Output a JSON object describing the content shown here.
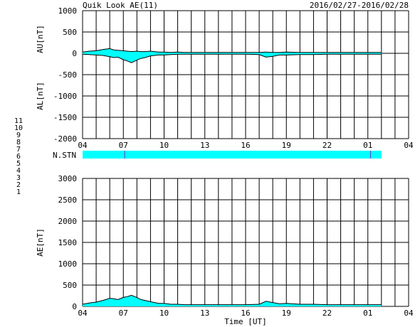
{
  "header": {
    "title": "Quik Look AE(11)",
    "date_range": "2016/02/27-2016/02/28"
  },
  "station_legend": {
    "items": [
      {
        "label": "11",
        "color": "#33cccc"
      },
      {
        "label": "10",
        "color": "#ff00ff"
      },
      {
        "label": "9",
        "color": "#0000cc"
      },
      {
        "label": "8",
        "color": "#ffff00"
      },
      {
        "label": "7",
        "color": "#00cc00"
      },
      {
        "label": "6",
        "color": "#ff0000"
      },
      {
        "label": "5",
        "color": "#999999"
      },
      {
        "label": "4",
        "color": "#000000"
      },
      {
        "label": "3",
        "color": "#00aaaa"
      },
      {
        "label": "2",
        "color": "#aa00aa"
      },
      {
        "label": "1",
        "color": "#0000ff"
      }
    ]
  },
  "chart_data": [
    {
      "type": "area",
      "name": "AU/AL panel",
      "ylabel_top": "AU[nT]",
      "ylabel_bottom": "AL[nT]",
      "ylim": [
        -2000,
        1000
      ],
      "yticks": [
        "1000",
        "500",
        "0",
        "-500",
        "-1000",
        "-1500",
        "-2000"
      ],
      "xticks": [
        "04",
        "07",
        "10",
        "13",
        "16",
        "19",
        "22",
        "01",
        "04"
      ],
      "xlim_hours": [
        0,
        24
      ],
      "fill_color": "#00ffff",
      "x": [
        0,
        0.5,
        1,
        1.5,
        2,
        2.3,
        2.6,
        3,
        3.3,
        3.6,
        4,
        4.3,
        4.6,
        5,
        5.3,
        5.6,
        6,
        6.5,
        7,
        7.5,
        8,
        9,
        10,
        11,
        12,
        13,
        13.5,
        14,
        14.5,
        15,
        16,
        17,
        18,
        19,
        20,
        21,
        22
      ],
      "au": [
        30,
        50,
        60,
        90,
        110,
        80,
        70,
        60,
        50,
        40,
        50,
        40,
        40,
        50,
        40,
        30,
        30,
        20,
        30,
        20,
        20,
        20,
        20,
        20,
        20,
        20,
        30,
        20,
        20,
        30,
        20,
        20,
        20,
        20,
        20,
        20,
        20
      ],
      "al": [
        -20,
        -30,
        -40,
        -50,
        -80,
        -100,
        -90,
        -150,
        -180,
        -220,
        -160,
        -120,
        -100,
        -60,
        -50,
        -40,
        -40,
        -30,
        -20,
        -20,
        -20,
        -20,
        -20,
        -20,
        -20,
        -30,
        -90,
        -70,
        -40,
        -40,
        -30,
        -30,
        -20,
        -20,
        -20,
        -20,
        -20
      ]
    },
    {
      "type": "bar",
      "name": "N.STN",
      "label": "N.STN",
      "fill_color": "#00ffff",
      "x_start_hours": 0,
      "x_end_hours": 22,
      "markers_hours": [
        3.1,
        21.2
      ],
      "marker_color": "#6633cc"
    },
    {
      "type": "area",
      "name": "AE panel",
      "ylabel": "AE[nT]",
      "xlabel": "Time [UT]",
      "ylim": [
        0,
        3000
      ],
      "yticks": [
        "3000",
        "2500",
        "2000",
        "1500",
        "1000",
        "500",
        "0"
      ],
      "xticks": [
        "04",
        "07",
        "10",
        "13",
        "16",
        "19",
        "22",
        "01",
        "04"
      ],
      "xlim_hours": [
        0,
        24
      ],
      "fill_color": "#00ffff",
      "x": [
        0,
        0.5,
        1,
        1.5,
        2,
        2.3,
        2.6,
        3,
        3.3,
        3.6,
        4,
        4.3,
        4.6,
        5,
        5.3,
        5.6,
        6,
        6.5,
        7,
        7.5,
        8,
        9,
        10,
        11,
        12,
        13,
        13.5,
        14,
        14.5,
        15,
        16,
        17,
        18,
        19,
        20,
        21,
        22
      ],
      "ae": [
        50,
        80,
        100,
        140,
        190,
        180,
        160,
        210,
        230,
        260,
        210,
        160,
        140,
        110,
        90,
        70,
        70,
        50,
        50,
        40,
        40,
        40,
        40,
        40,
        40,
        50,
        120,
        90,
        60,
        70,
        50,
        50,
        40,
        40,
        40,
        40,
        40
      ]
    }
  ]
}
